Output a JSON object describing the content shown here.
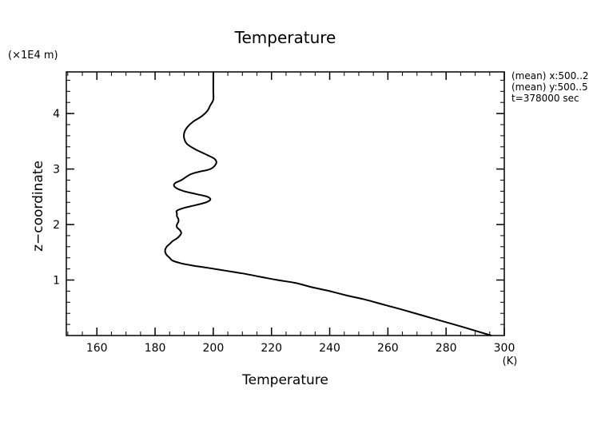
{
  "chart_data": {
    "type": "line",
    "title": "Temperature",
    "xlabel": "Temperature",
    "xunit": "(K)",
    "ylabel": "z−coordinate",
    "yunit": "(×1E4 m)",
    "xlim": [
      149.5,
      300
    ],
    "ylim": [
      0,
      4.75
    ],
    "xticks": [
      160,
      180,
      200,
      220,
      240,
      260,
      280,
      300
    ],
    "yticks": [
      1,
      2,
      3,
      4
    ],
    "x_minor_step": 5,
    "y_minor_step": 0.2,
    "annotations": [
      "(mean) x:500..2",
      "(mean) y:500..5",
      "t=378000 sec"
    ],
    "series": [
      {
        "x": [
          295.5,
          286,
          276,
          266,
          259,
          252,
          246,
          240,
          234,
          228,
          222,
          216,
          210,
          204,
          198,
          193,
          189,
          186,
          185,
          184,
          183.5,
          183.5,
          184,
          185,
          186,
          187.5,
          188.5,
          189,
          188.5,
          187.5,
          187.5,
          188,
          188,
          187.5,
          187.5,
          187.5,
          190,
          194,
          197.5,
          199,
          198,
          194,
          190,
          187.5,
          186.5,
          187,
          189,
          192,
          195,
          199,
          201,
          200.5,
          198,
          194,
          191,
          190,
          190,
          191,
          193,
          196,
          198,
          199,
          200,
          200,
          200,
          200
        ],
        "y": [
          0.0,
          0.15,
          0.3,
          0.45,
          0.55,
          0.65,
          0.72,
          0.8,
          0.87,
          0.95,
          1.0,
          1.06,
          1.12,
          1.17,
          1.22,
          1.26,
          1.3,
          1.35,
          1.4,
          1.45,
          1.5,
          1.55,
          1.6,
          1.65,
          1.7,
          1.75,
          1.8,
          1.85,
          1.9,
          1.95,
          2.0,
          2.05,
          2.1,
          2.15,
          2.2,
          2.25,
          2.3,
          2.35,
          2.4,
          2.45,
          2.5,
          2.55,
          2.6,
          2.65,
          2.7,
          2.75,
          2.8,
          2.9,
          2.95,
          3.0,
          3.1,
          3.18,
          3.25,
          3.35,
          3.45,
          3.55,
          3.65,
          3.75,
          3.85,
          3.95,
          4.05,
          4.15,
          4.25,
          4.4,
          4.6,
          4.75
        ]
      }
    ]
  }
}
